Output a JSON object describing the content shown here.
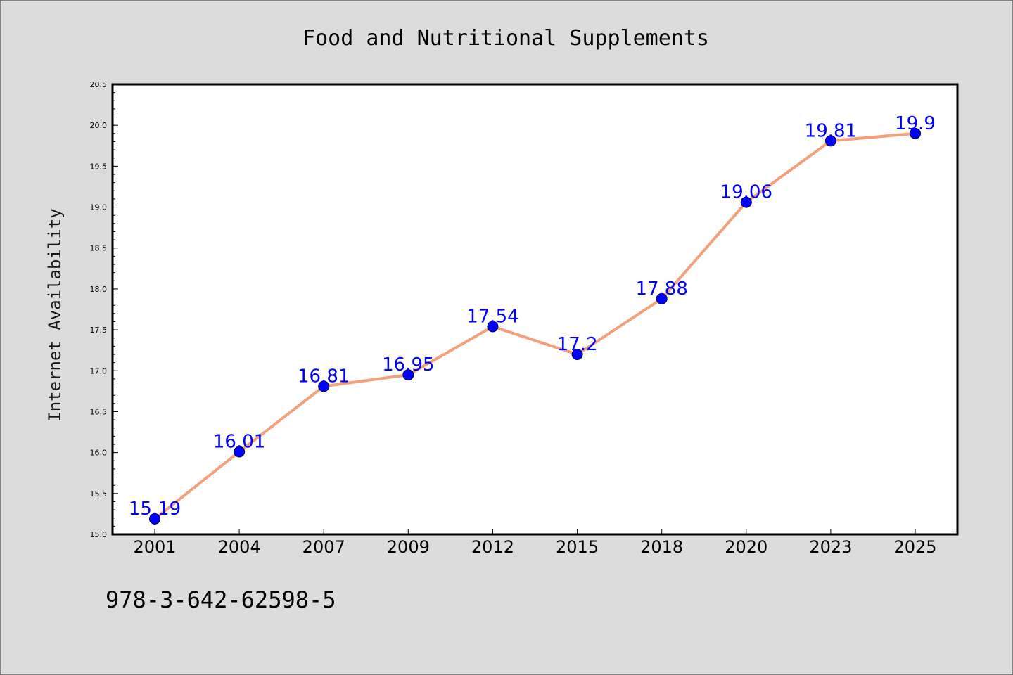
{
  "chart_data": {
    "type": "line",
    "title": "Food and Nutritional Supplements",
    "xlabel": "",
    "ylabel": "Internet Availability",
    "categories": [
      "2001",
      "2004",
      "2007",
      "2009",
      "2012",
      "2015",
      "2018",
      "2020",
      "2023",
      "2025"
    ],
    "series": [
      {
        "values": [
          15.19,
          16.01,
          16.81,
          16.95,
          17.54,
          17.2,
          17.88,
          19.06,
          19.81,
          19.9
        ],
        "data_labels": [
          "15.19",
          "16.01",
          "16.81",
          "16.95",
          "17.54",
          "17.2",
          "17.88",
          "19.06",
          "19.81",
          "19.9"
        ],
        "line_color": "#f4a07a",
        "marker_color": "#0000ff"
      }
    ],
    "ylim": [
      15.0,
      20.5
    ],
    "yticks": [
      "15.0",
      "15.5",
      "16.0",
      "16.5",
      "17.0",
      "17.5",
      "18.0",
      "18.5",
      "19.0",
      "19.5",
      "20.0",
      "20.5"
    ],
    "grid": false,
    "legend": "none"
  },
  "footer_text": "978-3-642-62598-5",
  "colors": {
    "background": "#dcdcdc",
    "plot_background": "#ffffff",
    "line": "#f4a07a",
    "marker": "#0000ff",
    "data_label": "#0000ff"
  }
}
